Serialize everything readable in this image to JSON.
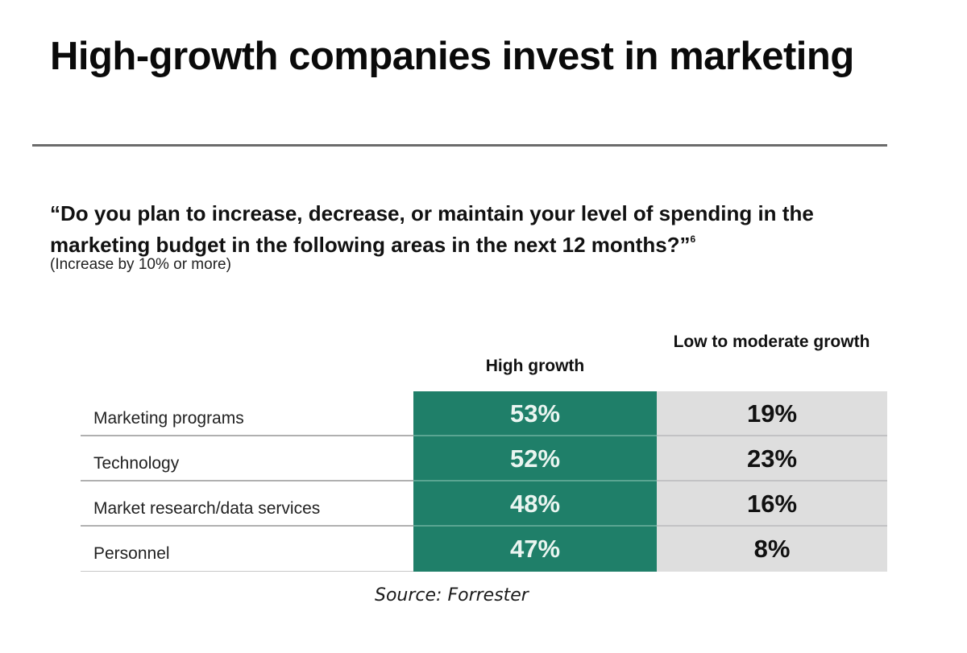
{
  "title": "High-growth companies invest in marketing",
  "question": "“Do you plan to increase, decrease, or maintain your level of spending in the marketing budget in the following areas in the next 12 months?”",
  "question_footnote": "6",
  "note": "(Increase by 10% or more)",
  "source": "Source: Forrester",
  "colors": {
    "high_growth": "#1f7f69",
    "low_growth": "#dedede"
  },
  "chart_data": {
    "type": "table",
    "title": "High-growth companies invest in marketing",
    "subtitle": "“Do you plan to increase, decrease, or maintain your level of spending in the marketing budget in the following areas in the next 12 months?” (Increase by 10% or more)",
    "columns": [
      "High growth",
      "Low to moderate growth"
    ],
    "categories": [
      "Marketing programs",
      "Technology",
      "Market research/data services",
      "Personnel"
    ],
    "series": [
      {
        "name": "High growth",
        "values": [
          53,
          52,
          48,
          47
        ],
        "labels": [
          "53%",
          "52%",
          "48%",
          "47%"
        ]
      },
      {
        "name": "Low to moderate growth",
        "values": [
          19,
          23,
          16,
          8
        ],
        "labels": [
          "19%",
          "23%",
          "16%",
          "8%"
        ]
      }
    ],
    "unit": "%",
    "source": "Source: Forrester"
  }
}
